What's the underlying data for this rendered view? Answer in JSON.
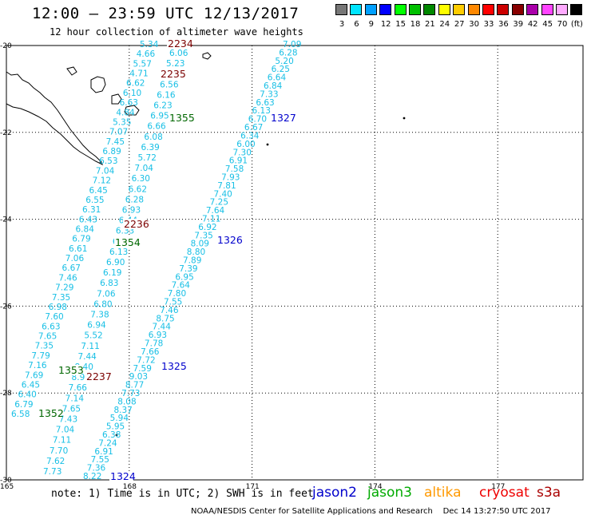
{
  "header": {
    "title": "12:00 – 23:59 UTC 12/13/2017",
    "subtitle": "12 hour collection of altimeter wave heights"
  },
  "legend": {
    "swatches": [
      {
        "color": "#777777",
        "label": "3"
      },
      {
        "color": "#00e5ff",
        "label": "6"
      },
      {
        "color": "#00a0ff",
        "label": "9"
      },
      {
        "color": "#0000ff",
        "label": "12"
      },
      {
        "color": "#00ff00",
        "label": "15"
      },
      {
        "color": "#00c000",
        "label": "18"
      },
      {
        "color": "#008800",
        "label": "21"
      },
      {
        "color": "#ffff00",
        "label": "24"
      },
      {
        "color": "#ffcc00",
        "label": "27"
      },
      {
        "color": "#ff8800",
        "label": "30"
      },
      {
        "color": "#ff0000",
        "label": "33"
      },
      {
        "color": "#cc0000",
        "label": "36"
      },
      {
        "color": "#880000",
        "label": "39"
      },
      {
        "color": "#aa00aa",
        "label": "42"
      },
      {
        "color": "#ff44ff",
        "label": "45"
      },
      {
        "color": "#ffaaff",
        "label": "70"
      },
      {
        "color": "#000000",
        "label": "(ft)"
      }
    ]
  },
  "axes": {
    "lat_labels": [
      "-20",
      "-22",
      "-24",
      "-26",
      "-28",
      "-30"
    ],
    "lon_labels": [
      "165",
      "168",
      "171",
      "174",
      "177"
    ]
  },
  "pass_labels": [
    {
      "text": "2234",
      "color": "#7b0000"
    },
    {
      "text": "2235",
      "color": "#7b0000"
    },
    {
      "text": "1355",
      "color": "#006600"
    },
    {
      "text": "1327",
      "color": "#0000cc"
    },
    {
      "text": "2236",
      "color": "#7b0000"
    },
    {
      "text": "1354",
      "color": "#006600"
    },
    {
      "text": "1326",
      "color": "#0000cc"
    },
    {
      "text": "1353",
      "color": "#006600"
    },
    {
      "text": "2237",
      "color": "#7b0000"
    },
    {
      "text": "1325",
      "color": "#0000cc"
    },
    {
      "text": "1352",
      "color": "#006600"
    },
    {
      "text": "1324",
      "color": "#0000cc"
    }
  ],
  "tracks": {
    "west": [
      "5.34",
      "4.66",
      "5.57",
      "4.71",
      "6.62",
      "6.10",
      "6.63",
      "4.84",
      "5.35",
      "7.07",
      "7.45",
      "6.89",
      "6.53",
      "7.04",
      "7.12",
      "6.45",
      "6.55",
      "6.31",
      "6.43",
      "6.84",
      "6.79",
      "6.61",
      "7.06",
      "6.67",
      "7.46",
      "7.29",
      "7.35",
      "6.98",
      "7.60",
      "6.63",
      "7.65",
      "7.35",
      "7.79",
      "7.16",
      "7.69",
      "6.45",
      "6.40",
      "6.79",
      "6.58"
    ],
    "mid": [
      "6.06",
      "5.23",
      "5.67",
      "6.56",
      "6.16",
      "6.23",
      "6.95",
      "6.66",
      "6.08",
      "6.39",
      "5.72",
      "7.04",
      "6.30",
      "6.62",
      "6.28",
      "6.93",
      "6.44",
      "6.33",
      "6.50",
      "6.13",
      "6.90",
      "6.19",
      "6.83",
      "7.06",
      "6.80",
      "7.38",
      "6.94",
      "5.52",
      "7.11",
      "7.44",
      "8.40",
      "8.93",
      "7.66",
      "7.14",
      "7.65",
      "7.43",
      "7.04",
      "7.11",
      "7.70",
      "7.62",
      "7.73"
    ],
    "east": [
      "7.09",
      "6.28",
      "5.20",
      "6.25",
      "6.64",
      "6.84",
      "7.33",
      "6.63",
      "6.13",
      "6.70",
      "6.67",
      "6.34",
      "6.00",
      "7.30",
      "6.91",
      "7.58",
      "7.93",
      "7.81",
      "7.40",
      "7.25",
      "7.64",
      "7.11",
      "6.92",
      "7.35",
      "8.09",
      "8.80",
      "7.89",
      "7.39",
      "6.95",
      "7.64",
      "7.80",
      "7.55",
      "7.46",
      "8.75",
      "7.44",
      "6.93",
      "7.78",
      "7.66",
      "7.72",
      "7.59",
      "9.03",
      "8.77",
      "7.73",
      "8.08",
      "8.37",
      "5.94",
      "5.95",
      "6.38",
      "7.24",
      "6.91",
      "7.55",
      "7.36",
      "8.22"
    ]
  },
  "footer": {
    "note": "note: 1) Time is in UTC; 2) SWH is in feet",
    "satellites": [
      {
        "name": "jason2",
        "color": "#0000cc"
      },
      {
        "name": "jason3",
        "color": "#00aa00"
      },
      {
        "name": "altika",
        "color": "#ff9900"
      },
      {
        "name": "cryosat",
        "color": "#ee0000"
      },
      {
        "name": "s3a",
        "color": "#aa0000"
      }
    ],
    "credit": "NOAA/NESDIS Center for Satellite Applications and Research    Dec 14 13:27:50 UTC 2017"
  }
}
